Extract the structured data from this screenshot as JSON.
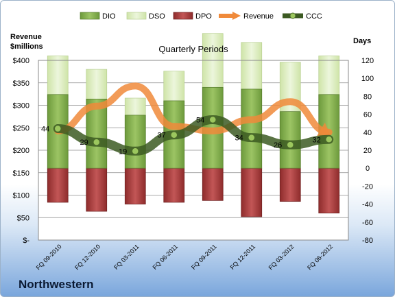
{
  "company": "Northwestern",
  "chart_data": {
    "type": "bar",
    "title": "Quarterly Periods",
    "left_axis_label": [
      "Revenue",
      "$millions"
    ],
    "right_axis_label": "Days",
    "left_ticks": [
      "$400",
      "$350",
      "$300",
      "$250",
      "$200",
      "$150",
      "$100",
      "$50",
      "$-"
    ],
    "left_ylim": [
      0,
      400
    ],
    "right_ticks": [
      "120",
      "100",
      "80",
      "60",
      "40",
      "20",
      "0",
      "-20",
      "-40",
      "-60",
      "-80"
    ],
    "right_ylim": [
      -80,
      120
    ],
    "categories": [
      "FQ 09-2010",
      "FQ 12-2010",
      "FQ 03-2011",
      "FQ 06-2011",
      "FQ 09-2011",
      "FQ 12-2011",
      "FQ 03-2012",
      "FQ 06-2012"
    ],
    "legend_position": "top",
    "grid": true,
    "series": [
      {
        "name": "DIO",
        "axis": "right",
        "kind": "stacked-positive",
        "color": "#7ea94a",
        "values": [
          82,
          77,
          59,
          75,
          90,
          88,
          63,
          82
        ]
      },
      {
        "name": "DSO",
        "axis": "right",
        "kind": "stacked-positive",
        "color": "#dceebc",
        "values": [
          0,
          0,
          0,
          0,
          0,
          0,
          0,
          0
        ]
      },
      {
        "name": "DPO",
        "axis": "right",
        "kind": "stacked-negative",
        "color": "#a33a3a",
        "values": [
          -38,
          -48,
          -40,
          -38,
          -36,
          -54,
          -37,
          -50
        ]
      },
      {
        "name": "Revenue",
        "axis": "left",
        "kind": "line-arrow",
        "color": "#f08a3a",
        "values": [
          243,
          298,
          343,
          253,
          243,
          268,
          308,
          240
        ]
      },
      {
        "name": "CCC",
        "axis": "right",
        "kind": "line-markers",
        "color": "#4a6a2a",
        "values": [
          44,
          29,
          19,
          37,
          54,
          34,
          26,
          32
        ],
        "labels": [
          "44",
          "29",
          "19",
          "37",
          "54",
          "34",
          "26",
          "32"
        ]
      }
    ],
    "dso_top_values": [
      125,
      110,
      78,
      108,
      150,
      140,
      118,
      125
    ],
    "dio_top_values": [
      44,
      29,
      19,
      37,
      54,
      34,
      26,
      32
    ]
  }
}
